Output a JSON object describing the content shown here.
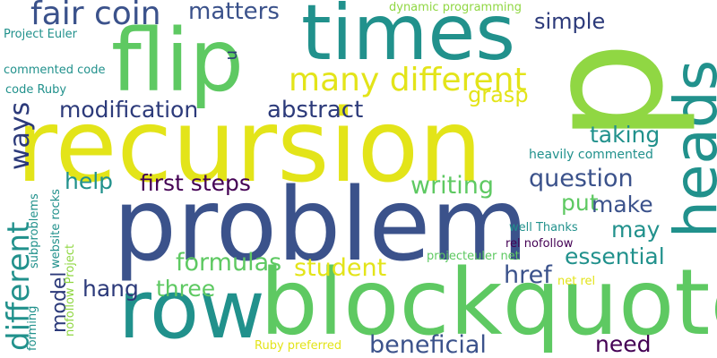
{
  "colors": {
    "background": "#ffffff",
    "yellow": "#e3e419",
    "green": "#5ec962",
    "teal": "#21918c",
    "blue": "#3b528b",
    "indigo": "#2c3a7a",
    "purple": "#440154",
    "lightgreen": "#90d743"
  },
  "words": {
    "recursion": "recursion",
    "problem": "problem",
    "blockquote": "blockquote",
    "times": "times",
    "flip": "flip",
    "row": "row",
    "heads": "heads",
    "p": "p",
    "fair_coin": "fair coin",
    "matters": "matters",
    "many_different": "many different",
    "modification": "modification",
    "abstract": "abstract",
    "grasp": "grasp",
    "simple": "simple",
    "dynamic_programming": "dynamic programming",
    "taking": "taking",
    "heavily_commented": "heavily commented",
    "question": "question",
    "first_steps": "first steps",
    "help": "help",
    "writing": "writing",
    "put": "put",
    "make": "make",
    "may": "may",
    "essential": "essential",
    "formulas": "formulas",
    "student": "student",
    "href": "href",
    "hang": "hang",
    "three": "three",
    "need": "need",
    "beneficial": "beneficial",
    "project_euler": "Project Euler",
    "commented_code": "commented code",
    "code_ruby": "code Ruby",
    "well_thanks": "well Thanks",
    "rel_nofollow": "rel nofollow",
    "projecteuler_net": "projecteuler net",
    "net_rel": "net rel",
    "ruby_preferred": "Ruby preferred",
    "ways": "ways",
    "different": "different",
    "model": "model",
    "forming": "forming",
    "subproblems": "subproblems",
    "website_rocks": "website rocks",
    "nofollow_project": "nofollow Project",
    "n": "n"
  }
}
